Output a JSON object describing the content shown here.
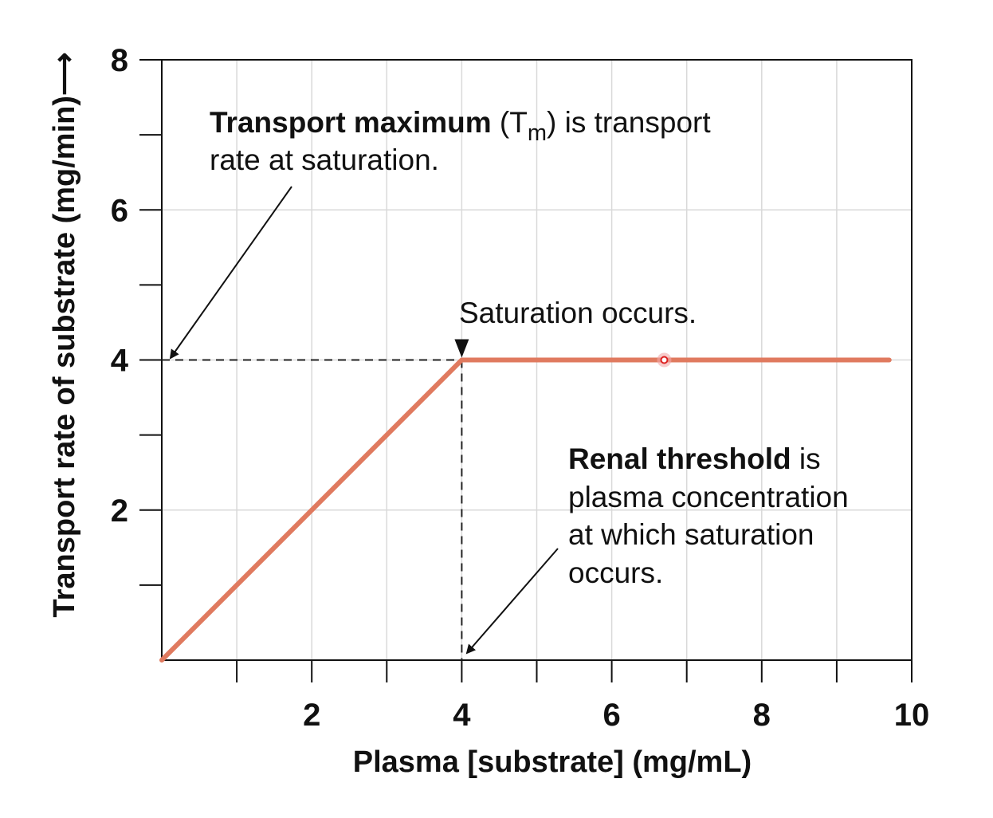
{
  "chart_data": {
    "type": "line",
    "x": [
      0,
      4,
      9.7
    ],
    "y": [
      0,
      4,
      4
    ],
    "series": [
      {
        "name": "Transport rate",
        "x": [
          0,
          4,
          9.7
        ],
        "y": [
          0,
          4,
          4
        ],
        "color": "#e07a5f"
      }
    ],
    "xlim": [
      0,
      10
    ],
    "ylim": [
      0,
      8
    ],
    "x_major_ticks": [
      2,
      4,
      6,
      8,
      10
    ],
    "x_minor_ticks": [
      1,
      3,
      5,
      7,
      9
    ],
    "x_tick_labels": [
      "2",
      "4",
      "6",
      "8",
      "10"
    ],
    "y_major_ticks": [
      2,
      4,
      6,
      8
    ],
    "y_minor_ticks": [
      1,
      3,
      5,
      7
    ],
    "y_tick_labels": [
      "2",
      "4",
      "6",
      "8"
    ],
    "xlabel": "Plasma [substrate] (mg/mL)",
    "ylabel": "Transport rate of substrate (mg/min)",
    "ylabel_arrow": "⟶",
    "grid": true,
    "reference_lines": {
      "tm_value": 4,
      "threshold_value": 4
    },
    "marker_point": {
      "x": 6.7,
      "y": 4
    },
    "annotations": {
      "tm": {
        "bold": "Transport maximum",
        "open": " (T",
        "sub": "m",
        "rest": ") is transport",
        "line2": "rate at saturation."
      },
      "saturation": "Saturation occurs.",
      "renal": {
        "bold": "Renal threshold",
        "rest": " is",
        "line2": "plasma concentration",
        "line3": "at which saturation",
        "line4": "occurs."
      }
    }
  }
}
